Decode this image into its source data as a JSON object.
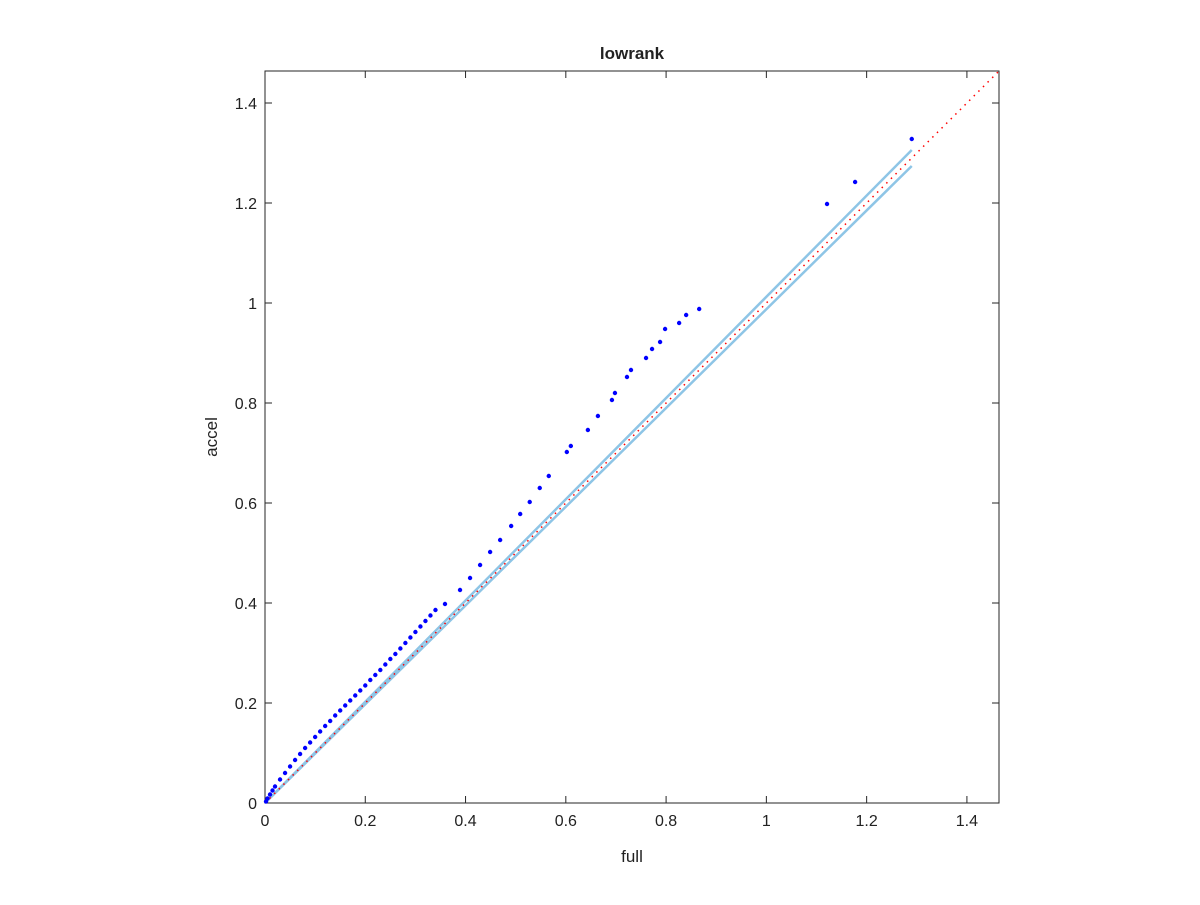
{
  "chart_data": {
    "type": "scatter",
    "title": "lowrank",
    "xlabel": "full",
    "ylabel": "accel",
    "xlim": [
      0,
      1.464
    ],
    "ylim": [
      0,
      1.464
    ],
    "xticks": [
      0,
      0.2,
      0.4,
      0.6,
      0.8,
      1,
      1.2,
      1.4
    ],
    "yticks": [
      0,
      0.2,
      0.4,
      0.6,
      0.8,
      1,
      1.2,
      1.4
    ],
    "grid": false,
    "series": [
      {
        "mode": "markers",
        "color": "#0000ff",
        "x": [
          0.002,
          0.005,
          0.01,
          0.015,
          0.02,
          0.03,
          0.04,
          0.05,
          0.06,
          0.07,
          0.08,
          0.09,
          0.1,
          0.11,
          0.12,
          0.13,
          0.14,
          0.15,
          0.16,
          0.17,
          0.18,
          0.19,
          0.2,
          0.21,
          0.22,
          0.23,
          0.24,
          0.25,
          0.26,
          0.27,
          0.28,
          0.29,
          0.3,
          0.31,
          0.32,
          0.33,
          0.34,
          0.359,
          0.389,
          0.409,
          0.429,
          0.449,
          0.469,
          0.491,
          0.509,
          0.528,
          0.548,
          0.566,
          0.602,
          0.61,
          0.644,
          0.664,
          0.692,
          0.698,
          0.722,
          0.73,
          0.76,
          0.772,
          0.788,
          0.798,
          0.826,
          0.84,
          0.866,
          1.121,
          1.177,
          1.29
        ],
        "values": [
          0.003,
          0.009,
          0.017,
          0.025,
          0.033,
          0.047,
          0.06,
          0.073,
          0.086,
          0.098,
          0.11,
          0.121,
          0.132,
          0.143,
          0.154,
          0.164,
          0.175,
          0.185,
          0.195,
          0.205,
          0.215,
          0.225,
          0.235,
          0.246,
          0.256,
          0.266,
          0.277,
          0.288,
          0.298,
          0.309,
          0.32,
          0.331,
          0.342,
          0.353,
          0.364,
          0.375,
          0.386,
          0.398,
          0.426,
          0.45,
          0.476,
          0.502,
          0.526,
          0.554,
          0.578,
          0.602,
          0.63,
          0.654,
          0.702,
          0.714,
          0.746,
          0.774,
          0.806,
          0.82,
          0.852,
          0.866,
          0.89,
          0.908,
          0.922,
          0.948,
          0.96,
          0.976,
          0.988,
          1.198,
          1.242,
          1.328
        ]
      },
      {
        "mode": "line",
        "color": "#8ec5e6",
        "x": [
          0,
          1.29
        ],
        "values": [
          0,
          1.306
        ]
      },
      {
        "mode": "line",
        "color": "#8ec5e6",
        "x": [
          0,
          1.29
        ],
        "values": [
          0,
          1.274
        ]
      },
      {
        "mode": "dotted",
        "color": "#ff0000",
        "x": [
          0,
          1.464
        ],
        "values": [
          0,
          1.464
        ]
      }
    ]
  }
}
